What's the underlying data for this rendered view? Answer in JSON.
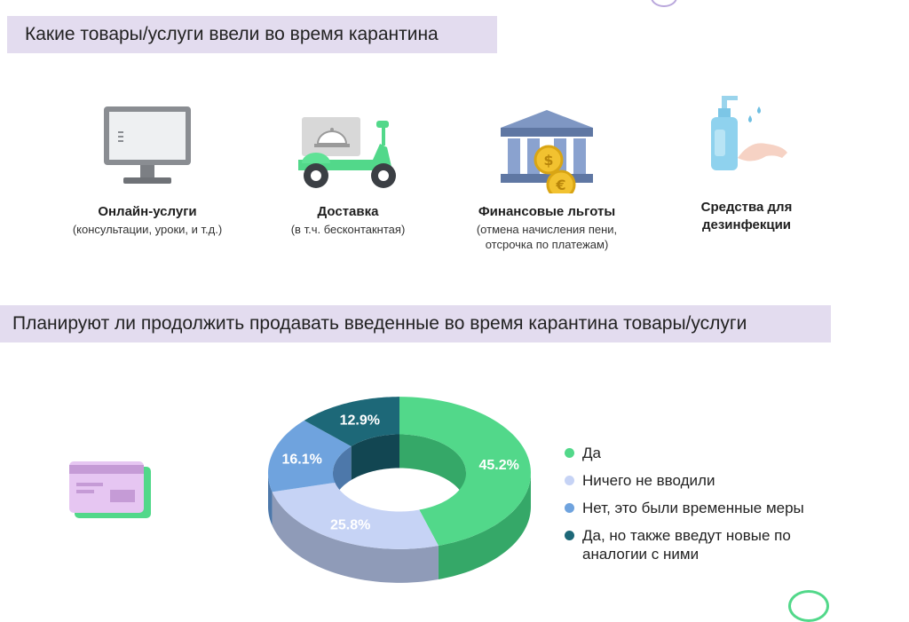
{
  "section1": {
    "title": "Какие товары/услуги ввели во время карантина"
  },
  "features": [
    {
      "name": "Онлайн-услуги",
      "desc": [
        "(консультации, уроки, и т.д.)"
      ],
      "icon": "monitor-icon"
    },
    {
      "name": "Доставка",
      "desc": [
        "(в т.ч. бесконтакнтая)"
      ],
      "icon": "delivery-scooter-icon"
    },
    {
      "name": "Финансовые льготы",
      "desc": [
        "(отмена начисления пени,",
        "отсрочка по платежам)"
      ],
      "icon": "bank-coins-icon"
    },
    {
      "name": "Средства для дезинфекции",
      "desc": [],
      "icon": "sanitizer-hand-icon"
    }
  ],
  "section2": {
    "title": "Планируют ли продолжить продавать введенные во время карантина товары/услуги"
  },
  "chart_data": {
    "type": "pie",
    "style": "3d-donut",
    "slices": [
      {
        "label": "Да",
        "value": 45.2,
        "display": "45.2%",
        "color": "#52d88a",
        "shade": "#35a868"
      },
      {
        "label": "Ничего не вводили",
        "value": 25.8,
        "display": "25.8%",
        "color": "#c6d3f5",
        "shade": "#8f9bb8"
      },
      {
        "label": "Нет, это были временные меры",
        "value": 16.1,
        "display": "16.1%",
        "color": "#6fa3de",
        "shade": "#4d78aa"
      },
      {
        "label": "Да, но также введут новые по аналогии с ними",
        "value": 12.9,
        "display": "12.9%",
        "color": "#1d6878",
        "shade": "#124652"
      }
    ],
    "legend_position": "right"
  },
  "legend": [
    {
      "label": "Да",
      "color": "#52d88a"
    },
    {
      "label": "Ничего не вводили",
      "color": "#c6d3f5"
    },
    {
      "label": "Нет, это были временные меры",
      "color": "#6fa3de"
    },
    {
      "label": "Да, но также введут новые по аналогии с ними",
      "color": "#1d6878"
    }
  ],
  "decor": {
    "card_icon": "credit-card-icon"
  }
}
